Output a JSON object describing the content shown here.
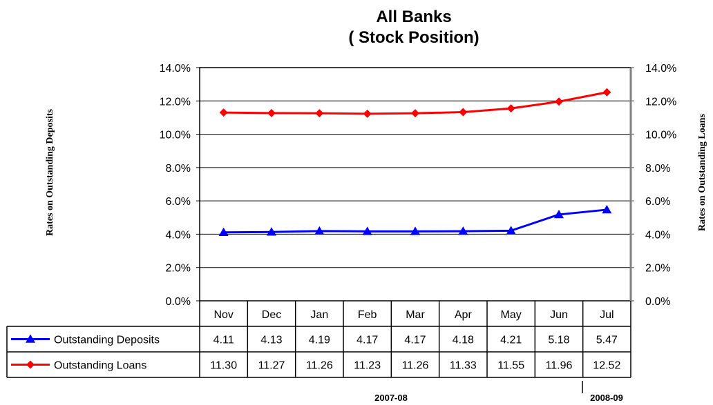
{
  "chart_data": {
    "type": "line",
    "title": "All Banks",
    "subtitle": "( Stock Position)",
    "ylabel_left": "Rates on Outstanding Deposits",
    "ylabel_right": "Rates on Outstanding Loans",
    "ylim": [
      0,
      14
    ],
    "y_ticks": [
      "0.0%",
      "2.0%",
      "4.0%",
      "6.0%",
      "8.0%",
      "10.0%",
      "12.0%",
      "14.0%"
    ],
    "categories": [
      "Nov",
      "Dec",
      "Jan",
      "Feb",
      "Mar",
      "Apr",
      "May",
      "Jun",
      "Jul"
    ],
    "series": [
      {
        "name": "Outstanding Deposits",
        "color": "#0000ff",
        "marker": "triangle",
        "values": [
          4.11,
          4.13,
          4.19,
          4.17,
          4.17,
          4.18,
          4.21,
          5.18,
          5.47
        ],
        "labels": [
          "4.11",
          "4.13",
          "4.19",
          "4.17",
          "4.17",
          "4.18",
          "4.21",
          "5.18",
          "5.47"
        ]
      },
      {
        "name": "Outstanding Loans",
        "color": "#ff0000",
        "marker": "diamond",
        "values": [
          11.3,
          11.27,
          11.26,
          11.23,
          11.26,
          11.33,
          11.55,
          11.96,
          12.52
        ],
        "labels": [
          "11.30",
          "11.27",
          "11.26",
          "11.23",
          "11.26",
          "11.33",
          "11.55",
          "11.96",
          "12.52"
        ]
      }
    ],
    "period_labels": [
      "2007-08",
      "2008-09"
    ],
    "gridlines": true,
    "legend": "data-table"
  }
}
